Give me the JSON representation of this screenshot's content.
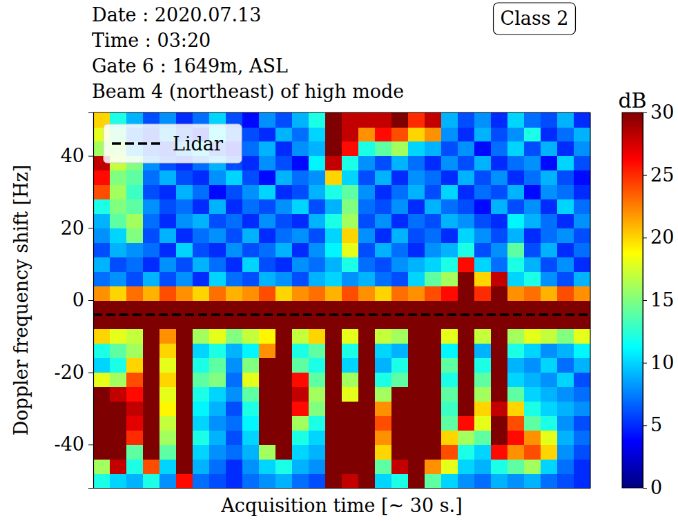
{
  "chart_data": {
    "type": "heatmap",
    "title": [
      "Date : 2020.07.13",
      "Time : 03:20",
      "Gate 6 : 1649m, ASL",
      "Beam 4 (northeast) of high mode"
    ],
    "annotations": [
      {
        "text": "Class 2"
      }
    ],
    "x_label": "Acquisition time [~ 30 s.]",
    "y_label": "Doppler frequency shift [Hz]",
    "xlim": [
      0,
      30
    ],
    "ylim": [
      -52,
      52
    ],
    "yticks": [
      -40,
      -20,
      0,
      20,
      40
    ],
    "tick_labels": "y",
    "legend": "upper left",
    "x": [
      0.5,
      1.5,
      2.5,
      3.5,
      4.5,
      5.5,
      6.5,
      7.5,
      8.5,
      9.5,
      10.5,
      11.5,
      12.5,
      13.5,
      14.5,
      15.5,
      16.5,
      17.5,
      18.5,
      19.5,
      20.5,
      21.5,
      22.5,
      23.5,
      24.5,
      25.5,
      26.5,
      27.5,
      28.5,
      29.5
    ],
    "y": [
      -50,
      -46,
      -42,
      -38,
      -34,
      -30,
      -26,
      -22,
      -18,
      -14,
      -10,
      -6,
      -2,
      2,
      6,
      10,
      14,
      18,
      22,
      26,
      30,
      34,
      38,
      42,
      46,
      50
    ],
    "z": [
      [
        12,
        10,
        9,
        12,
        8,
        26,
        7,
        6,
        5,
        7,
        8,
        9,
        7,
        6,
        30,
        28,
        30,
        10,
        12,
        30,
        14,
        10,
        8,
        7,
        9,
        8,
        9,
        7,
        6,
        5
      ],
      [
        16,
        28,
        12,
        24,
        10,
        30,
        9,
        7,
        5,
        8,
        10,
        12,
        9,
        8,
        30,
        30,
        30,
        14,
        28,
        30,
        22,
        18,
        10,
        9,
        12,
        14,
        16,
        10,
        7,
        5
      ],
      [
        30,
        30,
        14,
        30,
        14,
        30,
        10,
        8,
        7,
        9,
        16,
        30,
        10,
        9,
        30,
        30,
        30,
        20,
        30,
        30,
        30,
        24,
        12,
        10,
        26,
        22,
        24,
        20,
        8,
        6
      ],
      [
        30,
        30,
        25,
        30,
        16,
        30,
        12,
        9,
        6,
        10,
        30,
        30,
        12,
        10,
        30,
        30,
        30,
        22,
        30,
        30,
        30,
        20,
        16,
        14,
        30,
        26,
        22,
        18,
        9,
        7
      ],
      [
        30,
        30,
        27,
        30,
        17,
        30,
        10,
        8,
        7,
        11,
        30,
        30,
        16,
        12,
        30,
        30,
        30,
        24,
        30,
        30,
        30,
        14,
        26,
        18,
        30,
        24,
        14,
        12,
        8,
        6
      ],
      [
        30,
        30,
        28,
        30,
        19,
        30,
        11,
        9,
        6,
        12,
        30,
        30,
        26,
        15,
        30,
        30,
        30,
        22,
        30,
        30,
        30,
        13,
        30,
        20,
        28,
        20,
        12,
        10,
        9,
        8
      ],
      [
        30,
        28,
        26,
        30,
        18,
        30,
        12,
        10,
        8,
        14,
        30,
        30,
        28,
        16,
        30,
        18,
        30,
        16,
        30,
        30,
        30,
        14,
        30,
        16,
        30,
        14,
        10,
        9,
        8,
        7
      ],
      [
        18,
        16,
        24,
        30,
        20,
        30,
        14,
        15,
        7,
        18,
        30,
        30,
        26,
        14,
        30,
        16,
        30,
        12,
        14,
        30,
        30,
        12,
        30,
        14,
        30,
        10,
        9,
        8,
        10,
        6
      ],
      [
        10,
        12,
        20,
        30,
        18,
        30,
        12,
        14,
        8,
        15,
        30,
        30,
        14,
        12,
        30,
        10,
        30,
        9,
        12,
        30,
        30,
        14,
        30,
        12,
        30,
        9,
        8,
        10,
        7,
        9
      ],
      [
        12,
        14,
        16,
        30,
        20,
        30,
        10,
        12,
        9,
        11,
        22,
        30,
        12,
        14,
        30,
        12,
        30,
        10,
        9,
        30,
        30,
        11,
        30,
        9,
        30,
        12,
        10,
        8,
        9,
        11
      ],
      [
        20,
        18,
        17,
        30,
        22,
        30,
        16,
        18,
        15,
        17,
        19,
        30,
        17,
        20,
        30,
        18,
        30,
        17,
        16,
        30,
        30,
        18,
        30,
        17,
        30,
        16,
        18,
        17,
        15,
        18
      ],
      [
        30,
        30,
        30,
        30,
        30,
        30,
        30,
        30,
        30,
        30,
        30,
        30,
        30,
        30,
        30,
        30,
        30,
        30,
        30,
        30,
        30,
        30,
        30,
        30,
        30,
        30,
        30,
        30,
        30,
        30
      ],
      [
        30,
        30,
        30,
        30,
        30,
        30,
        30,
        30,
        30,
        30,
        30,
        30,
        30,
        30,
        30,
        30,
        30,
        30,
        30,
        30,
        30,
        30,
        30,
        30,
        30,
        30,
        30,
        30,
        30,
        30
      ],
      [
        22,
        20,
        23,
        21,
        24,
        22,
        20,
        23,
        21,
        22,
        24,
        20,
        22,
        23,
        21,
        24,
        22,
        20,
        23,
        22,
        24,
        26,
        30,
        25,
        30,
        22,
        23,
        21,
        24,
        22
      ],
      [
        7,
        8,
        6,
        9,
        6,
        8,
        5,
        10,
        7,
        6,
        9,
        8,
        6,
        9,
        10,
        8,
        9,
        7,
        6,
        10,
        14,
        16,
        30,
        20,
        28,
        10,
        12,
        8,
        6,
        9
      ],
      [
        9,
        6,
        7,
        5,
        8,
        6,
        9,
        7,
        5,
        10,
        6,
        5,
        8,
        7,
        9,
        12,
        7,
        6,
        8,
        9,
        10,
        12,
        26,
        10,
        7,
        12,
        9,
        6,
        8,
        5
      ],
      [
        6,
        9,
        8,
        7,
        5,
        10,
        6,
        5,
        8,
        6,
        7,
        9,
        5,
        8,
        11,
        18,
        6,
        9,
        7,
        5,
        8,
        9,
        12,
        6,
        8,
        14,
        6,
        9,
        5,
        7
      ],
      [
        8,
        10,
        15,
        6,
        9,
        5,
        7,
        8,
        6,
        9,
        5,
        7,
        8,
        6,
        10,
        20,
        8,
        5,
        9,
        6,
        7,
        5,
        10,
        8,
        6,
        9,
        5,
        7,
        8,
        6
      ],
      [
        9,
        14,
        16,
        7,
        5,
        8,
        9,
        6,
        7,
        5,
        8,
        6,
        5,
        9,
        12,
        16,
        6,
        8,
        5,
        7,
        6,
        9,
        8,
        6,
        5,
        11,
        9,
        7,
        5,
        8
      ],
      [
        12,
        15,
        14,
        8,
        6,
        7,
        5,
        9,
        5,
        7,
        6,
        8,
        10,
        6,
        9,
        15,
        7,
        6,
        8,
        5,
        9,
        7,
        6,
        4,
        9,
        6,
        8,
        5,
        10,
        7
      ],
      [
        24,
        16,
        13,
        6,
        5,
        9,
        7,
        4,
        6,
        8,
        10,
        5,
        6,
        9,
        12,
        14,
        8,
        5,
        7,
        9,
        6,
        10,
        5,
        7,
        6,
        9,
        4,
        8,
        7,
        5
      ],
      [
        26,
        15,
        14,
        7,
        9,
        6,
        5,
        8,
        10,
        6,
        4,
        9,
        7,
        8,
        20,
        10,
        6,
        9,
        5,
        8,
        7,
        5,
        9,
        6,
        8,
        5,
        7,
        9,
        6,
        4
      ],
      [
        28,
        17,
        15,
        8,
        6,
        5,
        7,
        9,
        6,
        5,
        8,
        6,
        4,
        11,
        28,
        12,
        8,
        6,
        9,
        7,
        5,
        8,
        6,
        9,
        5,
        7,
        8,
        4,
        10,
        6
      ],
      [
        16,
        16,
        9,
        6,
        5,
        8,
        10,
        6,
        4,
        7,
        9,
        5,
        8,
        9,
        30,
        26,
        12,
        14,
        16,
        10,
        9,
        6,
        8,
        4,
        7,
        10,
        6,
        9,
        5,
        8
      ],
      [
        18,
        14,
        7,
        5,
        9,
        6,
        4,
        11,
        7,
        6,
        5,
        9,
        7,
        10,
        30,
        28,
        22,
        26,
        24,
        20,
        22,
        8,
        5,
        9,
        6,
        8,
        12,
        5,
        7,
        9
      ],
      [
        20,
        12,
        9,
        6,
        8,
        5,
        7,
        10,
        6,
        4,
        8,
        6,
        9,
        12,
        30,
        28,
        28,
        28,
        30,
        25,
        28,
        9,
        6,
        8,
        5,
        10,
        7,
        6,
        9,
        5
      ]
    ],
    "colorbar": {
      "label": "dB",
      "range": [
        0,
        30
      ],
      "ticks": [
        0,
        5,
        10,
        15,
        20,
        25,
        30
      ]
    },
    "series": [
      {
        "name": "Lidar",
        "type": "hline",
        "values": [
          -4
        ],
        "color": "#000000",
        "line_style": "dashed"
      }
    ]
  }
}
